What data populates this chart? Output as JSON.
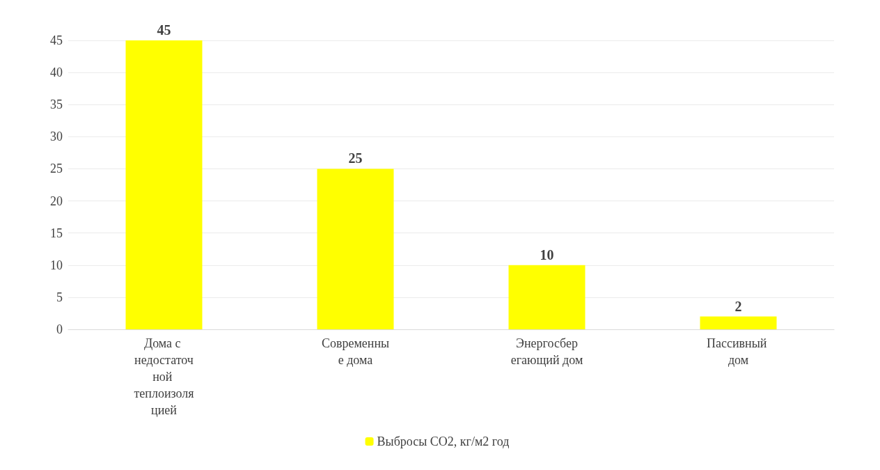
{
  "chart_data": {
    "type": "bar",
    "categories": [
      "Дома с недостаточной теплоизоляцией",
      "Современные дома",
      "Энергосберегающий дом",
      "Пассивный дом"
    ],
    "series": [
      {
        "name": "Выбросы СО2, кг/м2 год",
        "color": "#ffff00",
        "values": [
          45,
          25,
          10,
          2
        ]
      }
    ],
    "ylim": [
      0,
      45
    ],
    "yticks": [
      0,
      5,
      10,
      15,
      20,
      25,
      30,
      35,
      40,
      45
    ],
    "grid": "y",
    "legend": "bottom",
    "data_labels": true
  }
}
